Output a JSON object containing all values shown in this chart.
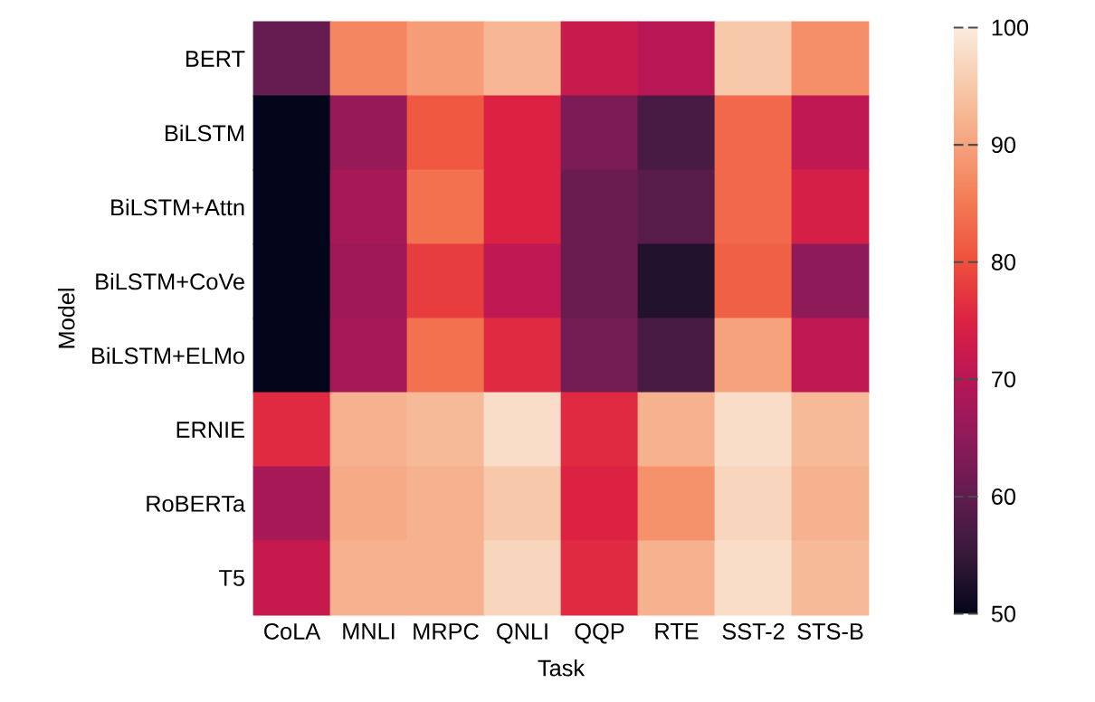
{
  "chart_data": {
    "type": "heatmap",
    "xlabel": "Task",
    "ylabel": "Model",
    "categories": [
      "CoLA",
      "MNLI",
      "MRPC",
      "QNLI",
      "QQP",
      "RTE",
      "SST-2",
      "STS-B"
    ],
    "y_categories": [
      "BERT",
      "BiLSTM",
      "BiLSTM+Attn",
      "BiLSTM+CoVe",
      "BiLSTM+ELMo",
      "ERNIE",
      "RoBERTa",
      "T5"
    ],
    "cells": [
      [
        60.5,
        86.7,
        89.3,
        92.7,
        72.1,
        70.1,
        94.9,
        87.6
      ],
      [
        50,
        66,
        81,
        75,
        63,
        57,
        83,
        71
      ],
      [
        50,
        68,
        84,
        75,
        61,
        59,
        83,
        74
      ],
      [
        50,
        67,
        78,
        71,
        61,
        53,
        82,
        65
      ],
      [
        50,
        68,
        84,
        76,
        62,
        57,
        90,
        71
      ],
      [
        76,
        92,
        93,
        98,
        76,
        92,
        98,
        93
      ],
      [
        68,
        91,
        92,
        95,
        75,
        88,
        97,
        92
      ],
      [
        72,
        92,
        92,
        97,
        76,
        92,
        98,
        93
      ]
    ],
    "clim": [
      50,
      100
    ],
    "cticks": [
      50,
      60,
      70,
      80,
      90,
      100
    ]
  }
}
